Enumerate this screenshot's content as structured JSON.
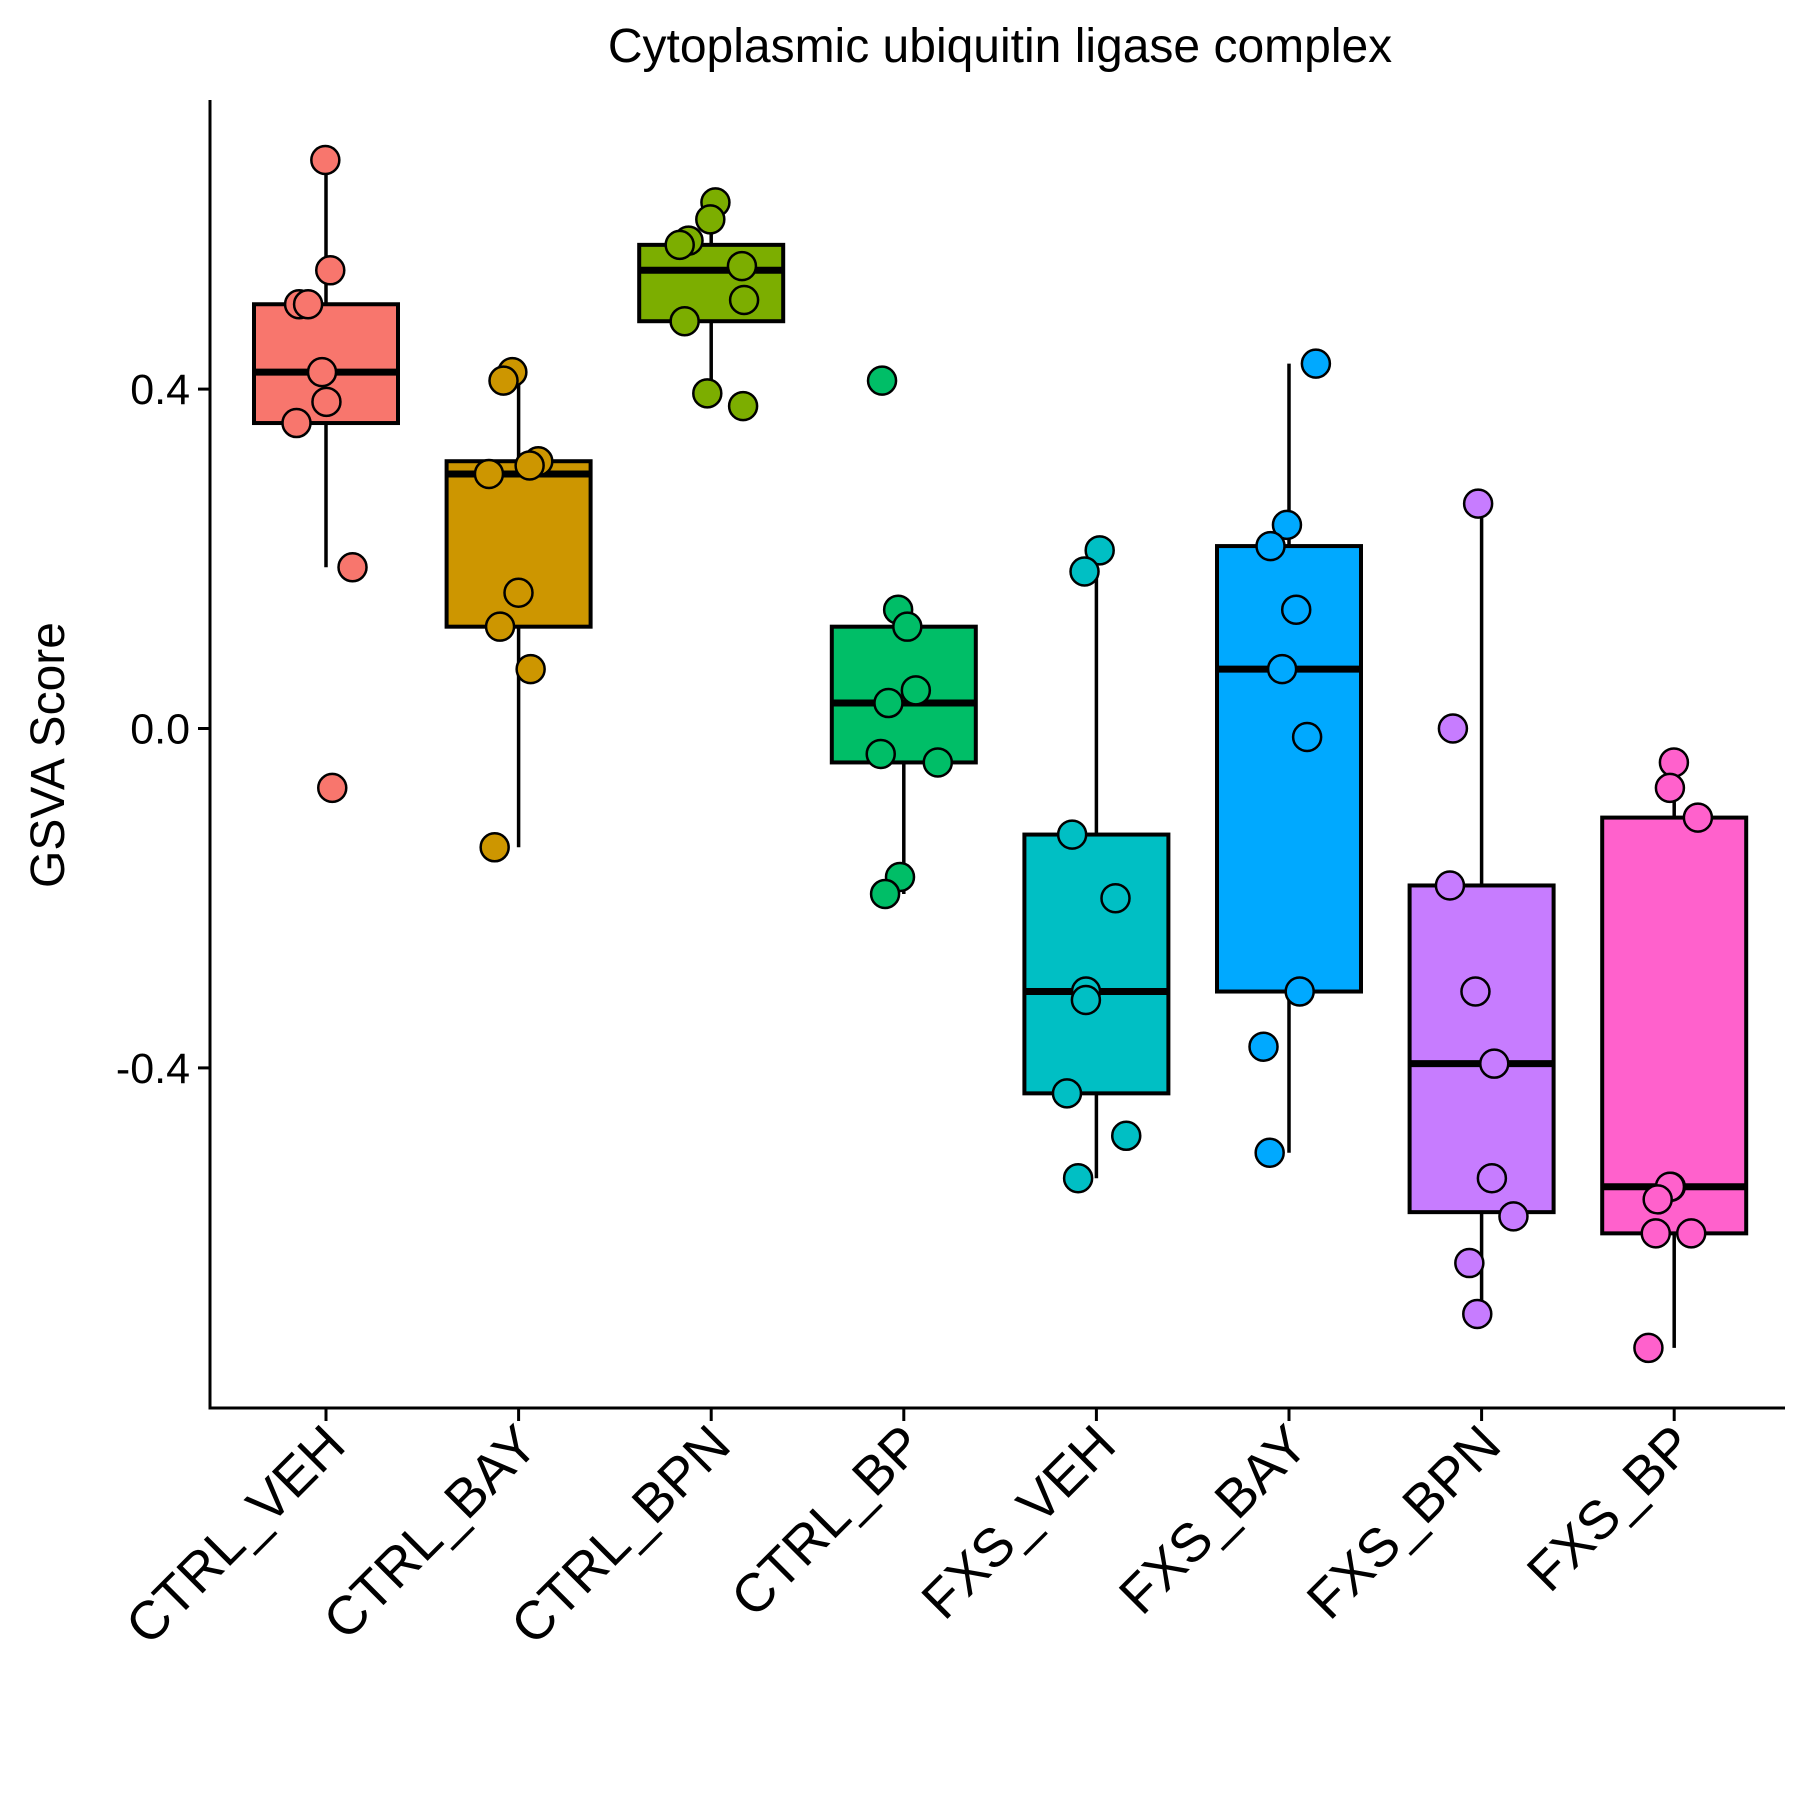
{
  "chart_data": {
    "type": "box",
    "title": "Cytoplasmic ubiquitin ligase complex",
    "xlabel": "",
    "ylabel": "GSVA Score",
    "ylim": [
      -0.8,
      0.74
    ],
    "yticks": [
      0.4,
      0.0,
      -0.4
    ],
    "ytick_labels": [
      "0.4",
      "0.0",
      "-0.4"
    ],
    "grid": false,
    "legend": "none",
    "categories": [
      "CTRL_VEH",
      "CTRL_BAY",
      "CTRL_BPN",
      "CTRL_BP",
      "FXS_VEH",
      "FXS_BAY",
      "FXS_BPN",
      "FXS_BP"
    ],
    "colors": [
      "#F8766D",
      "#CD9600",
      "#7CAE00",
      "#00BE67",
      "#00BFC4",
      "#00A9FF",
      "#C77CFF",
      "#FF61CC"
    ],
    "boxes": [
      {
        "q1": 0.36,
        "median": 0.42,
        "q3": 0.5,
        "whisker_low": 0.19,
        "whisker_high": 0.67
      },
      {
        "q1": 0.12,
        "median": 0.3,
        "q3": 0.315,
        "whisker_low": -0.14,
        "whisker_high": 0.42
      },
      {
        "q1": 0.48,
        "median": 0.54,
        "q3": 0.57,
        "whisker_low": 0.38,
        "whisker_high": 0.62
      },
      {
        "q1": -0.04,
        "median": 0.03,
        "q3": 0.12,
        "whisker_low": -0.195,
        "whisker_high": 0.14
      },
      {
        "q1": -0.43,
        "median": -0.31,
        "q3": -0.125,
        "whisker_low": -0.53,
        "whisker_high": 0.21
      },
      {
        "q1": -0.31,
        "median": 0.07,
        "q3": 0.215,
        "whisker_low": -0.5,
        "whisker_high": 0.43
      },
      {
        "q1": -0.57,
        "median": -0.395,
        "q3": -0.185,
        "whisker_low": -0.69,
        "whisker_high": 0.265
      },
      {
        "q1": -0.595,
        "median": -0.54,
        "q3": -0.105,
        "whisker_low": -0.73,
        "whisker_high": -0.04
      }
    ],
    "points": [
      [
        0.67,
        0.54,
        0.5,
        0.5,
        0.42,
        0.385,
        0.36,
        0.19,
        -0.07
      ],
      [
        0.42,
        0.41,
        0.315,
        0.31,
        0.3,
        0.16,
        0.12,
        0.07,
        -0.14
      ],
      [
        0.62,
        0.6,
        0.575,
        0.57,
        0.545,
        0.505,
        0.48,
        0.395,
        0.38
      ],
      [
        0.41,
        0.14,
        0.12,
        0.045,
        0.03,
        -0.03,
        -0.04,
        -0.175,
        -0.195
      ],
      [
        0.21,
        0.185,
        -0.125,
        -0.2,
        -0.31,
        -0.32,
        -0.43,
        -0.48,
        -0.53
      ],
      [
        0.43,
        0.24,
        0.215,
        0.14,
        0.07,
        -0.01,
        -0.31,
        -0.375,
        -0.5
      ],
      [
        0.265,
        0.0,
        -0.185,
        -0.31,
        -0.395,
        -0.53,
        -0.575,
        -0.63,
        -0.69
      ],
      [
        -0.04,
        -0.07,
        -0.105,
        -0.54,
        -0.54,
        -0.555,
        -0.595,
        -0.595,
        -0.73
      ]
    ]
  }
}
